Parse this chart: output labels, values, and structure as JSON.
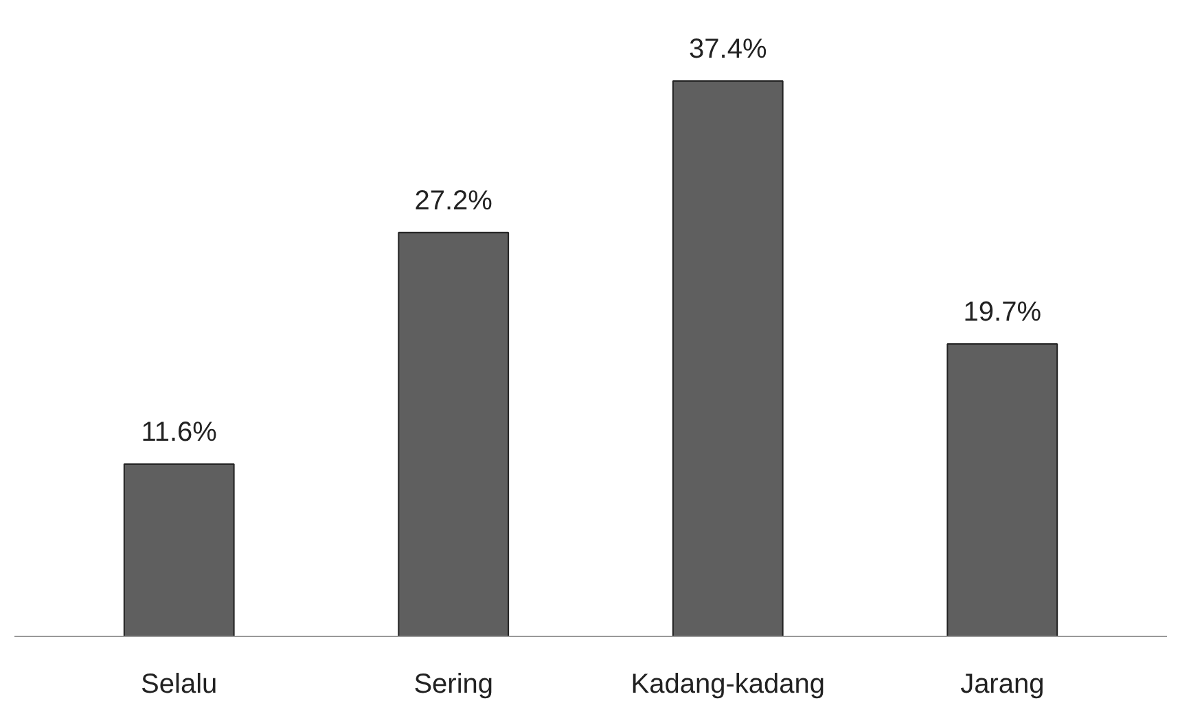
{
  "chart_data": {
    "type": "bar",
    "categories": [
      "Selalu",
      "Sering",
      "Kadang-kadang",
      "Jarang"
    ],
    "values": [
      11.6,
      27.2,
      37.4,
      19.7
    ],
    "value_labels": [
      "11.6%",
      "27.2%",
      "37.4%",
      "19.7%"
    ],
    "color": "#5f5f5f"
  }
}
